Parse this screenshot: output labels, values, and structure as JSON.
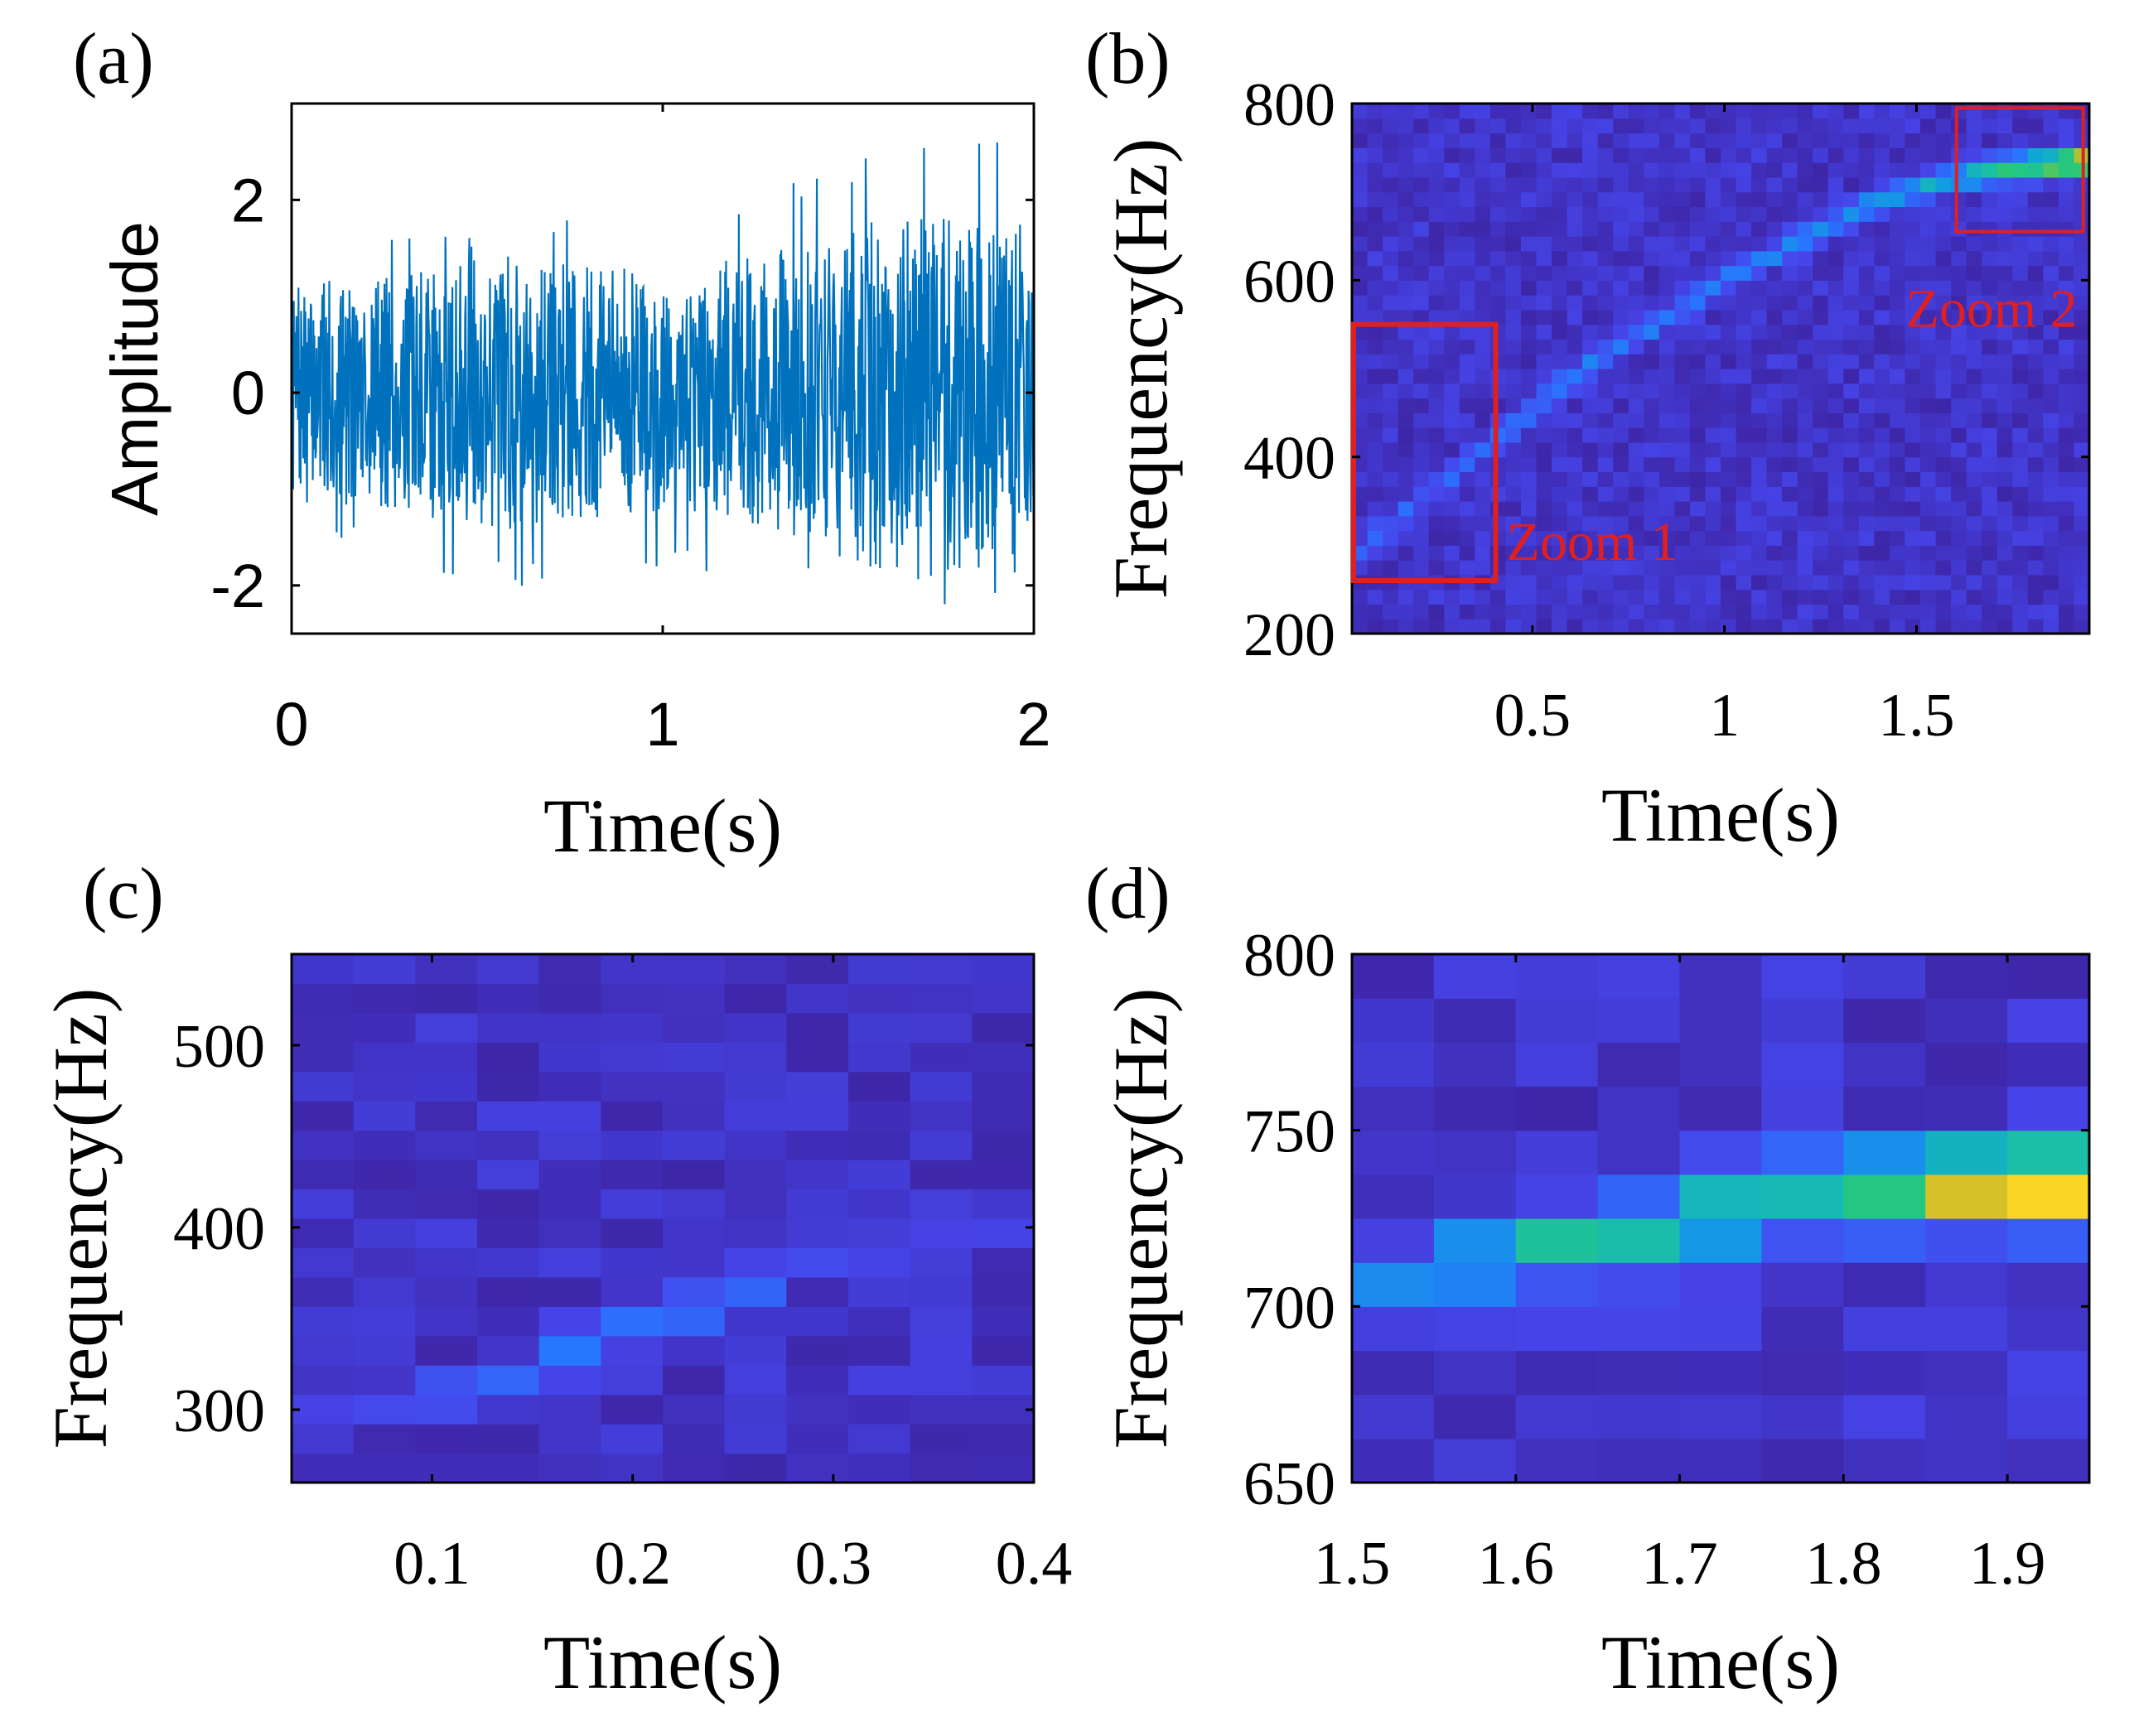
{
  "chart_data": [
    {
      "panel": "(a)",
      "type": "line",
      "xlabel": "Time(s)",
      "ylabel": "Amplitude",
      "xlim": [
        0,
        2
      ],
      "ylim": [
        -2.5,
        3
      ],
      "xticks": [
        0,
        1,
        2
      ],
      "xtick_labels": [
        "0",
        "1",
        "2"
      ],
      "yticks": [
        -2,
        0,
        2
      ],
      "ytick_labels": [
        "-2",
        "0",
        "2"
      ],
      "line_color": "#0072BD",
      "series": [
        {
          "envelope_time": [
            0,
            0.25,
            0.5,
            0.75,
            1.0,
            1.25,
            1.5,
            1.75,
            2.0
          ],
          "envelope_upper": [
            1.6,
            1.8,
            1.7,
            1.9,
            1.9,
            2.0,
            2.5,
            2.9,
            2.5
          ],
          "envelope_lower": [
            -1.4,
            -1.6,
            -2.1,
            -1.9,
            -1.9,
            -1.8,
            -2.0,
            -2.3,
            -2.1
          ]
        }
      ]
    },
    {
      "panel": "(b)",
      "type": "heatmap",
      "xlabel": "Time(s)",
      "ylabel": "Frequency(Hz)",
      "xlim": [
        0.03,
        1.95
      ],
      "ylim": [
        200,
        800
      ],
      "xticks": [
        0.5,
        1,
        1.5
      ],
      "xtick_labels": [
        "0.5",
        "1",
        "1.5"
      ],
      "yticks": [
        200,
        400,
        600,
        800
      ],
      "ytick_labels": [
        "200",
        "400",
        "600",
        "800"
      ],
      "ridge_time": [
        0.03,
        0.2,
        0.4,
        0.6,
        0.8,
        1.0,
        1.2,
        1.4,
        1.6,
        1.8,
        1.95
      ],
      "ridge_freq": [
        290,
        350,
        420,
        490,
        545,
        600,
        645,
        690,
        715,
        730,
        735
      ],
      "ridge_intensity": [
        0.15,
        0.2,
        0.2,
        0.25,
        0.25,
        0.25,
        0.3,
        0.35,
        0.45,
        0.7,
        0.95
      ],
      "annotations": [
        {
          "text": "Zoom 1",
          "t0": 0.03,
          "t1": 0.4,
          "f0": 260,
          "f1": 550
        },
        {
          "text": "Zoom 2",
          "t0": 1.6,
          "t1": 1.93,
          "f0": 655,
          "f1": 795
        }
      ]
    },
    {
      "panel": "(c)",
      "type": "heatmap",
      "xlabel": "Time(s)",
      "ylabel": "Frequency(Hz)",
      "xlim": [
        0.03,
        0.4
      ],
      "ylim": [
        260,
        550
      ],
      "xticks": [
        0.1,
        0.2,
        0.3,
        0.4
      ],
      "xtick_labels": [
        "0.1",
        "0.2",
        "0.3",
        "0.4"
      ],
      "yticks": [
        300,
        400,
        500
      ],
      "ytick_labels": [
        "300",
        "400",
        "500"
      ],
      "ridge_time": [
        0.03,
        0.1,
        0.15,
        0.2,
        0.25,
        0.3,
        0.35,
        0.4
      ],
      "ridge_freq": [
        290,
        305,
        325,
        345,
        360,
        385,
        400,
        410
      ],
      "ridge_intensity": [
        0.08,
        0.12,
        0.25,
        0.2,
        0.18,
        0.12,
        0.12,
        0.1
      ]
    },
    {
      "panel": "(d)",
      "type": "heatmap",
      "xlabel": "Time(s)",
      "ylabel": "Frequency(Hz)",
      "xlim": [
        1.5,
        1.95
      ],
      "ylim": [
        650,
        800
      ],
      "xticks": [
        1.5,
        1.6,
        1.7,
        1.8,
        1.9
      ],
      "xtick_labels": [
        "1.5",
        "1.6",
        "1.7",
        "1.8",
        "1.9"
      ],
      "yticks": [
        650,
        700,
        750,
        800
      ],
      "ytick_labels": [
        "650",
        "700",
        "750",
        "800"
      ],
      "ridge_time": [
        1.5,
        1.55,
        1.6,
        1.65,
        1.7,
        1.75,
        1.8,
        1.85,
        1.9,
        1.95
      ],
      "ridge_freq": [
        704,
        707,
        717,
        720,
        720,
        733,
        733,
        735,
        735,
        735
      ],
      "ridge_intensity": [
        0.38,
        0.35,
        0.4,
        0.55,
        0.62,
        0.55,
        0.55,
        0.8,
        0.88,
        0.95
      ]
    }
  ]
}
